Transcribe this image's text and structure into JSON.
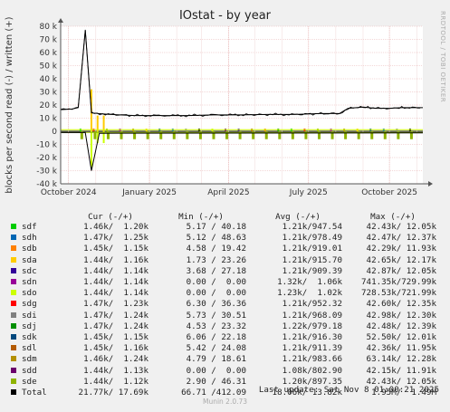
{
  "chart_data": {
    "type": "line",
    "title": "IOstat - by year",
    "ylabel": "blocks per second read (-) / written (+)",
    "side_text": "RRDTOOL / TOBI OETIKER",
    "ylim": [
      -40000,
      80000
    ],
    "y_ticks": [
      80000,
      70000,
      60000,
      50000,
      40000,
      30000,
      20000,
      10000,
      0,
      -10000,
      -20000,
      -30000,
      -40000
    ],
    "y_tick_labels": [
      "80 k",
      "70 k",
      "60 k",
      "50 k",
      "40 k",
      "30 k",
      "20 k",
      "10 k",
      "0",
      "-10 k",
      "-20 k",
      "-30 k",
      "-40 k"
    ],
    "x_tick_labels": [
      "October 2024",
      "January 2025",
      "April 2025",
      "July 2025",
      "October 2025"
    ],
    "x_range": [
      "2024-09-22",
      "2025-11-08"
    ],
    "x_ticks": [
      "2024-10-01",
      "2025-01-01",
      "2025-04-01",
      "2025-07-01",
      "2025-10-01"
    ],
    "series": [
      {
        "name": "Total",
        "color": "#000000",
        "x": [
          "2024-09-22",
          "2024-10-05",
          "2024-10-12",
          "2024-10-20",
          "2024-10-27",
          "2024-11-15",
          "2024-12-15",
          "2025-01-15",
          "2025-02-15",
          "2025-03-15",
          "2025-04-15",
          "2025-05-15",
          "2025-06-15",
          "2025-07-15",
          "2025-08-05",
          "2025-08-15",
          "2025-09-01",
          "2025-09-15",
          "2025-10-01",
          "2025-10-15",
          "2025-11-08"
        ],
        "values": [
          16500,
          17000,
          18000,
          77000,
          14000,
          13000,
          12000,
          12000,
          12000,
          12500,
          12500,
          12800,
          12800,
          13500,
          13500,
          17500,
          18500,
          17500,
          17500,
          18000,
          18000
        ]
      },
      {
        "name": "Total",
        "color": "#000000",
        "x": [
          "2024-09-22",
          "2024-10-20",
          "2024-10-27",
          "2024-11-05",
          "2025-11-08"
        ],
        "values": [
          -1000,
          -1000,
          -30000,
          -1500,
          -1200
        ]
      }
    ]
  },
  "legend": {
    "header": {
      "cur": "Cur (-/+)",
      "min": "Min (-/+)",
      "avg": "Avg (-/+)",
      "max": "Max (-/+)"
    },
    "rows": [
      {
        "name": "sdf",
        "color": "#00cc00",
        "cur": "1.46k/  1.20k",
        "min": "5.17 / 40.18",
        "avg": "1.21k/947.54",
        "max": "42.43k/ 12.05k"
      },
      {
        "name": "sdh",
        "color": "#0066b3",
        "cur": "1.47k/  1.25k",
        "min": "5.12 / 48.63",
        "avg": "1.21k/978.49",
        "max": "42.47k/ 12.37k"
      },
      {
        "name": "sdb",
        "color": "#ff8000",
        "cur": "1.45k/  1.15k",
        "min": "4.58 / 19.42",
        "avg": "1.21k/919.01",
        "max": "42.29k/ 11.93k"
      },
      {
        "name": "sda",
        "color": "#ffcc00",
        "cur": "1.44k/  1.16k",
        "min": "1.73 / 23.26",
        "avg": "1.21k/915.70",
        "max": "42.65k/ 12.17k"
      },
      {
        "name": "sdc",
        "color": "#330099",
        "cur": "1.44k/  1.14k",
        "min": "3.68 / 27.18",
        "avg": "1.21k/909.39",
        "max": "42.87k/ 12.05k"
      },
      {
        "name": "sdn",
        "color": "#990099",
        "cur": "1.44k/  1.14k",
        "min": "0.00 /  0.00",
        "avg": "1.32k/  1.06k",
        "max": "741.35k/729.99k"
      },
      {
        "name": "sdo",
        "color": "#ccff00",
        "cur": "1.44k/  1.14k",
        "min": "0.00 /  0.00",
        "avg": "1.23k/  1.02k",
        "max": "728.53k/721.99k"
      },
      {
        "name": "sdg",
        "color": "#ff0000",
        "cur": "1.47k/  1.23k",
        "min": "6.30 / 36.36",
        "avg": "1.21k/952.32",
        "max": "42.60k/ 12.35k"
      },
      {
        "name": "sdi",
        "color": "#808080",
        "cur": "1.47k/  1.24k",
        "min": "5.73 / 30.51",
        "avg": "1.21k/968.09",
        "max": "42.98k/ 12.30k"
      },
      {
        "name": "sdj",
        "color": "#008f00",
        "cur": "1.47k/  1.24k",
        "min": "4.53 / 23.32",
        "avg": "1.22k/979.18",
        "max": "42.48k/ 12.39k"
      },
      {
        "name": "sdk",
        "color": "#00487d",
        "cur": "1.45k/  1.15k",
        "min": "6.06 / 22.18",
        "avg": "1.21k/916.30",
        "max": "52.50k/ 12.01k"
      },
      {
        "name": "sdl",
        "color": "#b35a00",
        "cur": "1.45k/  1.16k",
        "min": "5.42 / 24.08",
        "avg": "1.21k/911.39",
        "max": "42.36k/ 11.95k"
      },
      {
        "name": "sdm",
        "color": "#b38f00",
        "cur": "1.46k/  1.24k",
        "min": "4.79 / 18.61",
        "avg": "1.21k/983.66",
        "max": "63.14k/ 12.28k"
      },
      {
        "name": "sdd",
        "color": "#6b006b",
        "cur": "1.44k/  1.13k",
        "min": "0.00 /  0.00",
        "avg": "1.08k/802.90",
        "max": "42.15k/ 11.91k"
      },
      {
        "name": "sde",
        "color": "#8fb300",
        "cur": "1.44k/  1.12k",
        "min": "2.90 / 46.31",
        "avg": "1.20k/897.35",
        "max": "42.43k/ 12.05k"
      },
      {
        "name": "Total",
        "color": "#000000",
        "cur": "21.77k/ 17.69k",
        "min": "66.71 /412.09",
        "avg": "18.06k/ 13.82k",
        "max": "1.95M/  1.49M"
      }
    ]
  },
  "last_update": "Last update: Sat Nov  8 01:00:21 2025",
  "munin_version": "Munin 2.0.73"
}
